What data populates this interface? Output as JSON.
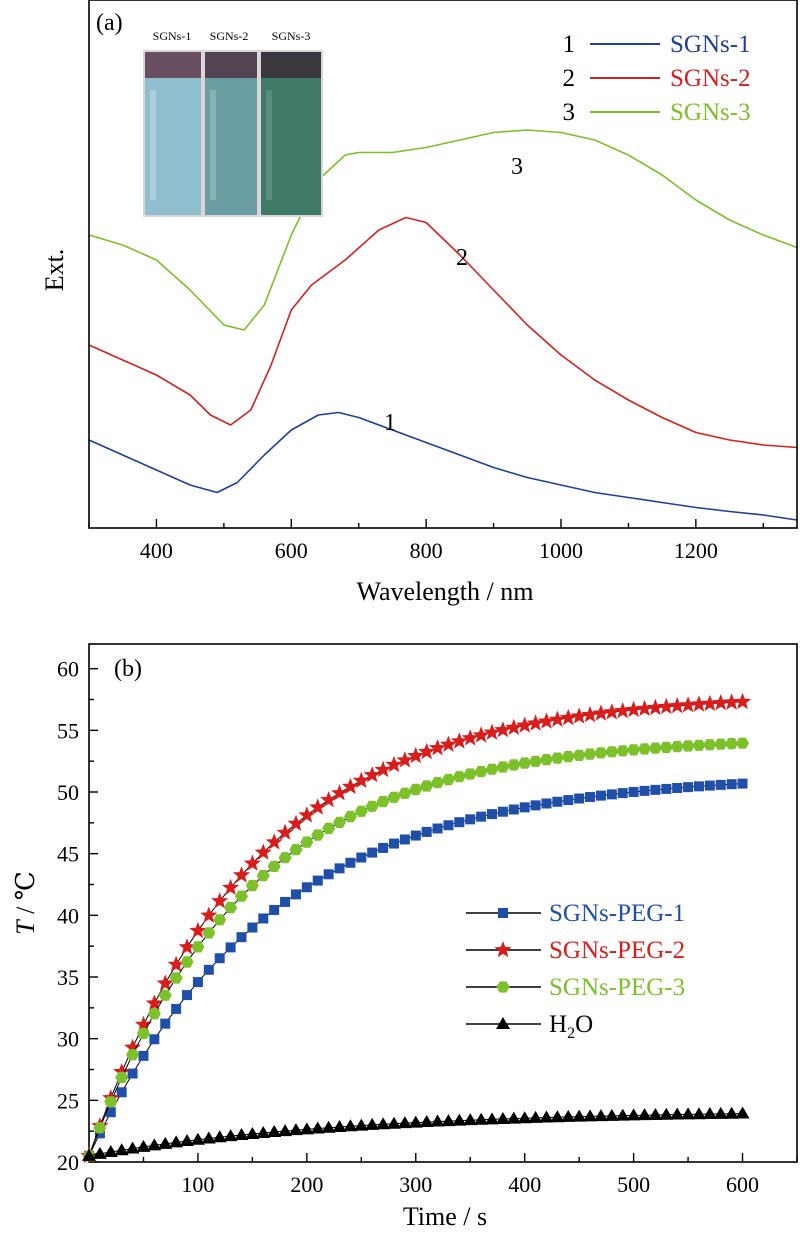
{
  "chart_data": [
    {
      "type": "line",
      "panel_label": "(a)",
      "xlabel": "Wavelength / nm",
      "ylabel": "Ext.",
      "xlim": [
        300,
        1350
      ],
      "ylim": [
        0,
        1.0
      ],
      "x_ticks": [
        400,
        600,
        800,
        1000,
        1200
      ],
      "y_ticks_labeled": false,
      "legend_position": "top-right",
      "inset_labels": [
        "SGNs-1",
        "SGNs-2",
        "SGNs-3"
      ],
      "series": [
        {
          "name": "SGNs-1",
          "number": "1",
          "color": "#1f3f9a",
          "x": [
            300,
            350,
            400,
            450,
            490,
            520,
            560,
            600,
            640,
            670,
            700,
            750,
            800,
            850,
            900,
            950,
            1000,
            1050,
            1100,
            1150,
            1200,
            1250,
            1300,
            1350
          ],
          "y": [
            0.16,
            0.13,
            0.1,
            0.07,
            0.055,
            0.075,
            0.13,
            0.18,
            0.21,
            0.215,
            0.205,
            0.18,
            0.155,
            0.13,
            0.105,
            0.085,
            0.07,
            0.055,
            0.045,
            0.035,
            0.025,
            0.017,
            0.01,
            0.0
          ]
        },
        {
          "name": "SGNs-2",
          "number": "2",
          "color": "#d42020",
          "x": [
            300,
            350,
            400,
            450,
            480,
            510,
            540,
            570,
            600,
            630,
            680,
            730,
            770,
            800,
            850,
            900,
            950,
            1000,
            1050,
            1100,
            1150,
            1200,
            1250,
            1300,
            1350
          ],
          "y": [
            0.35,
            0.32,
            0.29,
            0.25,
            0.21,
            0.19,
            0.22,
            0.31,
            0.42,
            0.47,
            0.52,
            0.58,
            0.605,
            0.595,
            0.53,
            0.46,
            0.39,
            0.33,
            0.28,
            0.24,
            0.205,
            0.175,
            0.16,
            0.15,
            0.145
          ]
        },
        {
          "name": "SGNs-3",
          "number": "3",
          "color": "#7cbf2a",
          "x": [
            300,
            350,
            400,
            450,
            500,
            530,
            560,
            600,
            640,
            680,
            700,
            750,
            800,
            850,
            900,
            950,
            1000,
            1050,
            1100,
            1150,
            1200,
            1250,
            1300,
            1350
          ],
          "y": [
            0.57,
            0.55,
            0.52,
            0.46,
            0.39,
            0.38,
            0.43,
            0.57,
            0.68,
            0.73,
            0.735,
            0.735,
            0.745,
            0.76,
            0.775,
            0.78,
            0.775,
            0.76,
            0.73,
            0.69,
            0.64,
            0.6,
            0.57,
            0.545
          ]
        }
      ]
    },
    {
      "type": "line",
      "panel_label": "(b)",
      "xlabel": "Time / s",
      "ylabel_italic": "T",
      "ylabel_rest": " / ℃",
      "xlim": [
        0,
        650
      ],
      "ylim": [
        20,
        62
      ],
      "x_ticks": [
        0,
        100,
        200,
        300,
        400,
        500,
        600
      ],
      "y_ticks": [
        20,
        25,
        30,
        35,
        40,
        45,
        50,
        55,
        60
      ],
      "legend_position": "center-right",
      "model": "T(t) = T0 + A * (1 - exp(-t / tau)), sampled every 10 s",
      "series": [
        {
          "name": "SGNs-PEG-1",
          "color": "#1f4fa8",
          "marker": "square",
          "T0": 20.5,
          "A": 31.0,
          "tau": 165,
          "t_start": 0,
          "t_end": 600,
          "step": 10
        },
        {
          "name": "SGNs-PEG-2",
          "color": "#d91c1c",
          "marker": "star",
          "T0": 20.5,
          "A": 37.5,
          "tau": 150,
          "t_start": 0,
          "t_end": 600,
          "step": 10
        },
        {
          "name": "SGNs-PEG-3",
          "color": "#7cc02a",
          "marker": "hexagon",
          "T0": 20.5,
          "A": 34.0,
          "tau": 145,
          "t_start": 0,
          "t_end": 600,
          "step": 10
        },
        {
          "name": "H2O",
          "name_main": "H",
          "name_sub": "2",
          "name_tail": "O",
          "color": "#000000",
          "marker": "triangle",
          "T0": 20.5,
          "A": 3.7,
          "tau": 230,
          "t_start": 0,
          "t_end": 600,
          "step": 10
        }
      ]
    }
  ]
}
